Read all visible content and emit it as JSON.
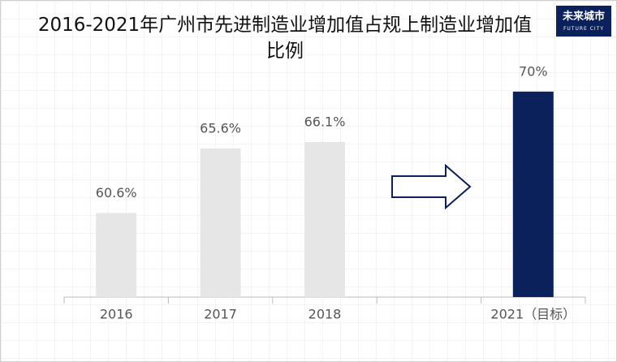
{
  "chart_data": {
    "type": "bar",
    "title": "2016-2021年广州市先进制造业增加值占规上制造业增加值比例",
    "categories": [
      "2016",
      "2017",
      "2018",
      null,
      "2021（目标）"
    ],
    "values": [
      60.6,
      65.6,
      66.1,
      null,
      70
    ],
    "value_labels": [
      "60.6%",
      "65.6%",
      "66.1%",
      null,
      "70%"
    ],
    "colors": [
      "#e6e6e6",
      "#e6e6e6",
      "#e6e6e6",
      null,
      "#0b215c"
    ],
    "ylim": [
      54.1,
      72
    ]
  },
  "logo": {
    "text": "未来城市",
    "subtext": "FUTURE CITY"
  }
}
